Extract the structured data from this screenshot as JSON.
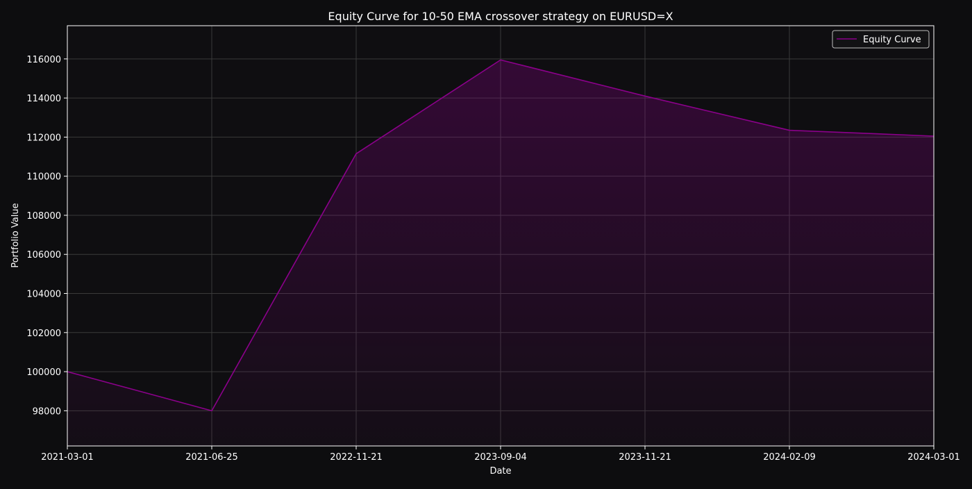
{
  "chart_data": {
    "type": "area",
    "title": "Equity Curve for 10-50 EMA crossover strategy on EURUSD=X",
    "xlabel": "Date",
    "ylabel": "Portfolio Value",
    "x": [
      "2021-03-01",
      "2021-06-25",
      "2022-11-21",
      "2023-09-04",
      "2023-11-21",
      "2024-02-09",
      "2024-03-01"
    ],
    "series": [
      {
        "name": "Equity Curve",
        "values": [
          100000,
          98000,
          111150,
          115950,
          114100,
          112350,
          112050
        ]
      }
    ],
    "x_ticks": [
      "2021-03-01",
      "2021-06-25",
      "2022-11-21",
      "2023-09-04",
      "2023-11-21",
      "2024-02-09",
      "2024-03-01"
    ],
    "y_ticks": [
      98000,
      100000,
      102000,
      104000,
      106000,
      108000,
      110000,
      112000,
      114000,
      116000
    ],
    "ylim": [
      96200,
      117700
    ],
    "x_scale": "categorical-evenly-spaced",
    "grid": true,
    "legend_position": "top-right",
    "colors": {
      "background": "#0d0d0f",
      "plot_background": "#0f0e11",
      "line": "#8b008b",
      "fill": "#8b008b",
      "grid": "#3a3a3a",
      "axes": "#ffffff",
      "text": "#ffffff"
    }
  }
}
